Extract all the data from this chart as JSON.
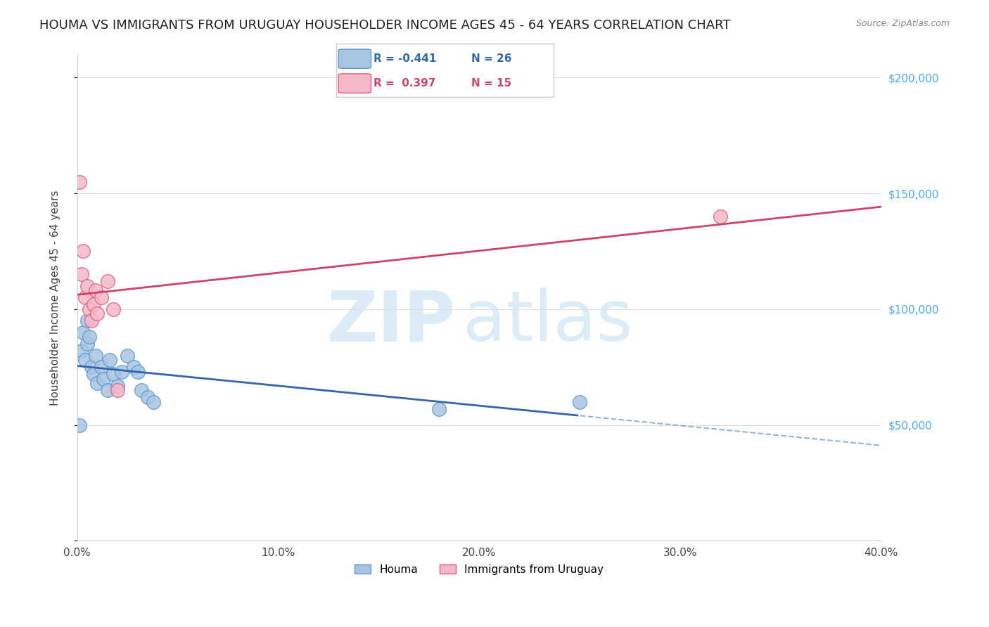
{
  "title": "HOUMA VS IMMIGRANTS FROM URUGUAY HOUSEHOLDER INCOME AGES 45 - 64 YEARS CORRELATION CHART",
  "source": "Source: ZipAtlas.com",
  "ylabel": "Householder Income Ages 45 - 64 years",
  "xlim": [
    0.0,
    0.4
  ],
  "ylim": [
    0,
    210000
  ],
  "yticks": [
    0,
    50000,
    100000,
    150000,
    200000
  ],
  "ytick_labels_right": [
    "",
    "$50,000",
    "$100,000",
    "$150,000",
    "$200,000"
  ],
  "xticks": [
    0.0,
    0.1,
    0.2,
    0.3,
    0.4
  ],
  "xtick_labels": [
    "0.0%",
    "10.0%",
    "20.0%",
    "30.0%",
    "40.0%"
  ],
  "houma_color": "#a8c4e0",
  "houma_edge_color": "#5b9bd5",
  "uruguay_color": "#f4b8c8",
  "uruguay_edge_color": "#e06080",
  "houma_R": -0.441,
  "houma_N": 26,
  "uruguay_R": 0.397,
  "uruguay_N": 15,
  "legend_label_houma": "Houma",
  "legend_label_uruguay": "Immigrants from Uruguay",
  "houma_line_color": "#3366aa",
  "uruguay_line_color": "#cc4466",
  "houma_x": [
    0.001,
    0.002,
    0.003,
    0.004,
    0.005,
    0.005,
    0.006,
    0.007,
    0.008,
    0.009,
    0.01,
    0.012,
    0.013,
    0.015,
    0.016,
    0.018,
    0.02,
    0.022,
    0.025,
    0.028,
    0.03,
    0.032,
    0.035,
    0.038,
    0.18,
    0.25
  ],
  "houma_y": [
    50000,
    82000,
    90000,
    78000,
    85000,
    95000,
    88000,
    75000,
    72000,
    80000,
    68000,
    75000,
    70000,
    65000,
    78000,
    72000,
    67000,
    73000,
    80000,
    75000,
    73000,
    65000,
    62000,
    60000,
    57000,
    60000
  ],
  "uruguay_x": [
    0.001,
    0.002,
    0.003,
    0.004,
    0.005,
    0.006,
    0.007,
    0.008,
    0.009,
    0.01,
    0.012,
    0.015,
    0.018,
    0.02,
    0.32
  ],
  "uruguay_y": [
    155000,
    115000,
    125000,
    105000,
    110000,
    100000,
    95000,
    102000,
    108000,
    98000,
    105000,
    112000,
    100000,
    65000,
    140000
  ]
}
